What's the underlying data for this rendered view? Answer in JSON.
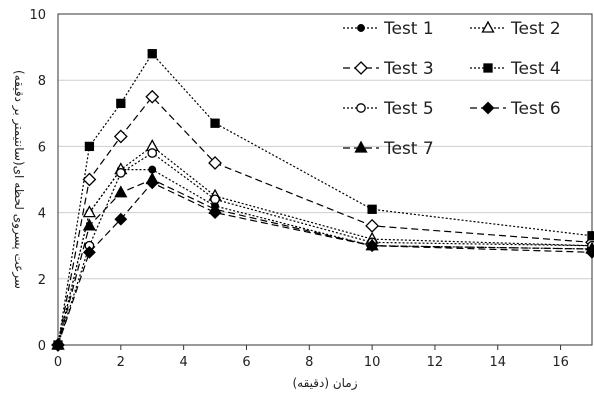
{
  "chart_data": {
    "type": "line",
    "title": "",
    "xlabel": "زمان (دقیقه)",
    "ylabel": "سرعت پسروی لحظه ای(سانتیمتر بر دقیقه)",
    "xlim": [
      0,
      17
    ],
    "ylim": [
      0,
      10
    ],
    "x_ticks": [
      "0",
      "2",
      "4",
      "6",
      "8",
      "10",
      "12",
      "14",
      "16"
    ],
    "y_ticks": [
      "0",
      "2",
      "4",
      "6",
      "8",
      "10"
    ],
    "grid": "y-major",
    "legend_position": "top-right",
    "x": [
      0,
      1,
      2,
      3,
      5,
      10,
      17
    ],
    "series": [
      {
        "name": "Test 1",
        "marker": "filled-circle",
        "dash": "dotted",
        "color": "#000000",
        "values": [
          0,
          4.0,
          5.3,
          5.3,
          4.2,
          3.0,
          2.9
        ]
      },
      {
        "name": "Test 2",
        "marker": "open-triangle",
        "dash": "dotted",
        "color": "#000000",
        "values": [
          0,
          4.0,
          5.3,
          6.0,
          4.5,
          3.2,
          3.0
        ]
      },
      {
        "name": "Test 3",
        "marker": "open-diamond",
        "dash": "long-dash",
        "color": "#000000",
        "values": [
          0,
          5.0,
          6.3,
          7.5,
          5.5,
          3.6,
          3.1
        ]
      },
      {
        "name": "Test 4",
        "marker": "filled-square",
        "dash": "dotted",
        "color": "#000000",
        "values": [
          0,
          6.0,
          7.3,
          8.8,
          6.7,
          4.1,
          3.3
        ]
      },
      {
        "name": "Test 5",
        "marker": "open-circle",
        "dash": "dotted",
        "color": "#000000",
        "values": [
          0,
          3.0,
          5.2,
          5.8,
          4.4,
          3.1,
          3.0
        ]
      },
      {
        "name": "Test 6",
        "marker": "filled-diamond",
        "dash": "long-dash",
        "color": "#000000",
        "values": [
          0,
          2.8,
          3.8,
          4.9,
          4.0,
          3.0,
          2.8
        ]
      },
      {
        "name": "Test 7",
        "marker": "filled-triangle",
        "dash": "long-dash",
        "color": "#000000",
        "values": [
          0,
          3.6,
          4.6,
          5.0,
          4.1,
          3.0,
          2.9
        ]
      }
    ]
  }
}
